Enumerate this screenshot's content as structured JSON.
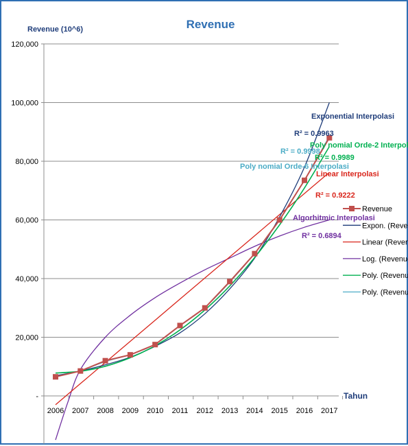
{
  "chart_data": {
    "type": "line",
    "title": "Revenue",
    "ylabel": "Revenue (10^6)",
    "xlabel": "Tahun",
    "ylim": [
      0,
      120000
    ],
    "y_ticks": [
      "-",
      "20,000",
      "40,000",
      "60,000",
      "80,000",
      "100,000",
      "120,000"
    ],
    "y_tick_values": [
      0,
      20000,
      40000,
      60000,
      80000,
      100000,
      120000
    ],
    "x": [
      2006,
      2007,
      2008,
      2009,
      2010,
      2011,
      2012,
      2013,
      2014,
      2015,
      2016,
      2017
    ],
    "gridlines": "horizontal",
    "legend_position": "right",
    "series": [
      {
        "name": "Revenue",
        "color": "#c0504d",
        "marker": "square",
        "x": [
          2006,
          2007,
          2008,
          2009,
          2010,
          2011,
          2012,
          2013,
          2014,
          2015,
          2016,
          2017
        ],
        "values": [
          6500,
          8500,
          12000,
          14000,
          17500,
          24000,
          30000,
          39000,
          48500,
          60000,
          73500,
          88000
        ]
      },
      {
        "name": "Expon. (Revenue)",
        "color": "#1f3d7a",
        "x": [
          2006,
          2007,
          2008,
          2009,
          2010,
          2011,
          2012,
          2013,
          2014,
          2015,
          2016,
          2017
        ],
        "values": [
          6900,
          8500,
          10600,
          13200,
          16900,
          21500,
          28000,
          36500,
          47000,
          61000,
          78000,
          100000
        ]
      },
      {
        "name": "Linear (Revenue)",
        "color": "#d9261c",
        "x": [
          2006,
          2007,
          2008,
          2009,
          2010,
          2011,
          2012,
          2013,
          2014,
          2015,
          2016,
          2017
        ],
        "values": [
          -3000,
          4200,
          11400,
          18600,
          25800,
          33000,
          40200,
          47400,
          54600,
          61800,
          69000,
          76200
        ]
      },
      {
        "name": "Log. (Revenue)",
        "color": "#7030a0",
        "x": [
          2006,
          2006.5,
          2007,
          2008,
          2009,
          2010,
          2011,
          2012,
          2013,
          2014,
          2015,
          2016,
          2017
        ],
        "values": [
          -15000,
          -2000,
          9000,
          20000,
          27500,
          33500,
          38500,
          43000,
          47000,
          51000,
          54500,
          57500,
          60000
        ]
      },
      {
        "name": "Poly. (Revenue)",
        "color": "#00b050",
        "x": [
          2006,
          2007,
          2008,
          2009,
          2010,
          2011,
          2012,
          2013,
          2014,
          2015,
          2016,
          2017
        ],
        "values": [
          7800,
          8400,
          10100,
          13000,
          17100,
          22500,
          29300,
          37500,
          47200,
          58300,
          70900,
          85000
        ]
      },
      {
        "name": "Poly. (Revenue)",
        "color": "#4bacc6",
        "x": [
          2006,
          2007,
          2008,
          2009,
          2010,
          2011,
          2012,
          2013,
          2014,
          2015,
          2016,
          2017
        ],
        "values": [
          6500,
          8600,
          11700,
          14100,
          17600,
          23900,
          30100,
          38800,
          48600,
          60000,
          73600,
          88500
        ]
      }
    ],
    "annotations": [
      {
        "text": "Exponential  Interpolasi",
        "color": "#1f3d7a"
      },
      {
        "text": "R² = 0.9963",
        "color": "#1f3d7a"
      },
      {
        "text": "R² = 0.9998",
        "color": "#4bacc6"
      },
      {
        "text": "Poly nomial Orde-2 Interpolasi",
        "color": "#00b050"
      },
      {
        "text": "R² = 0.9989",
        "color": "#00b050"
      },
      {
        "text": "Poly nomial Orde-6 Interpolasi",
        "color": "#4bacc6"
      },
      {
        "text": "Linear Interpolasi",
        "color": "#d9261c"
      },
      {
        "text": "R² = 0.9222",
        "color": "#d9261c"
      },
      {
        "text": "Algorhitmic Interpolasi",
        "color": "#7030a0"
      },
      {
        "text": "R² = 0.6894",
        "color": "#7030a0"
      }
    ]
  }
}
